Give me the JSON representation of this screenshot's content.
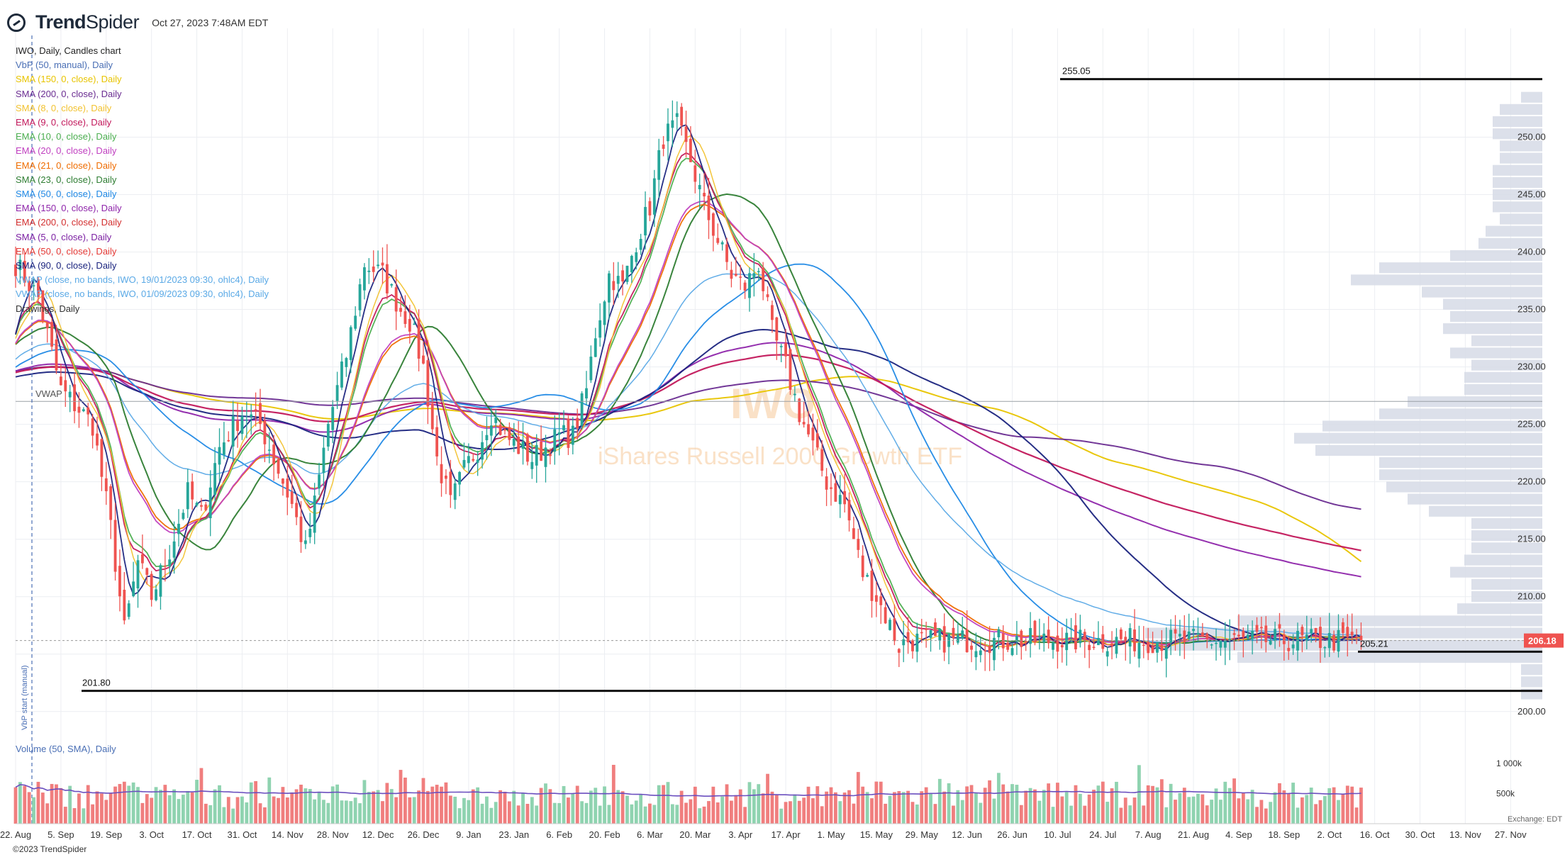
{
  "header": {
    "brand_bold": "Trend",
    "brand_rest": "Spider",
    "timestamp": "Oct 27, 2023 7:48AM EDT",
    "subtitle": "IWO, Daily, Candles chart"
  },
  "legend": [
    {
      "text": "VbP (50, manual), Daily",
      "color": "#4a6fb5"
    },
    {
      "text": "SMA (150, 0, close), Daily",
      "color": "#e8c400"
    },
    {
      "text": "SMA (200, 0, close), Daily",
      "color": "#6a2c91"
    },
    {
      "text": "SMA (8, 0, close), Daily",
      "color": "#f2c230"
    },
    {
      "text": "EMA (9, 0, close), Daily",
      "color": "#c2185b"
    },
    {
      "text": "EMA (10, 0, close), Daily",
      "color": "#4caf50"
    },
    {
      "text": "EMA (20, 0, close), Daily",
      "color": "#c040c0"
    },
    {
      "text": "EMA (21, 0, close), Daily",
      "color": "#ef6c00"
    },
    {
      "text": "SMA (23, 0, close), Daily",
      "color": "#2e7d32"
    },
    {
      "text": "SMA (50, 0, close), Daily",
      "color": "#1e88e5"
    },
    {
      "text": "EMA (150, 0, close), Daily",
      "color": "#8e24aa"
    },
    {
      "text": "EMA (200, 0, close), Daily",
      "color": "#d32f2f"
    },
    {
      "text": "SMA (5, 0, close), Daily",
      "color": "#7b1fa2"
    },
    {
      "text": "EMA (50, 0, close), Daily",
      "color": "#e53935"
    },
    {
      "text": "SMA (90, 0, close), Daily",
      "color": "#1a237e"
    },
    {
      "text": "VWAP (close, no bands, IWO, 19/01/2023 09:30, ohlc4), Daily",
      "color": "#5aa9e6"
    },
    {
      "text": "VWAP (close, no bands, IWO, 01/09/2023 09:30, ohlc4), Daily",
      "color": "#5aa9e6"
    },
    {
      "text": "Drawings, Daily",
      "color": "#333333"
    }
  ],
  "watermark": {
    "line1": "IWO",
    "line2": "iShares Russell 2000 Growth ETF"
  },
  "annotations": {
    "high_label": "255.05",
    "low_label": "201.80",
    "recent_low_label": "205.21",
    "last_price": "206.18",
    "vwap_label": "VWAP",
    "vbp_start_label": "VbP start (manual)",
    "exchange": "Exchange: EDT"
  },
  "volume": {
    "title": "Volume (50, SMA), Daily"
  },
  "copyright": "©2023 TrendSpider",
  "colors": {
    "up": "#26a69a",
    "down": "#ef5350",
    "vol_up": "#8fd3b0",
    "vol_down": "#f07e7e",
    "volume_profile": "#d6dbe6",
    "grid": "#eceef2"
  },
  "chart_data": {
    "type": "candlestick",
    "symbol": "IWO",
    "ylim": [
      199,
      257
    ],
    "y_ticks": [
      200,
      205,
      210,
      215,
      220,
      225,
      230,
      235,
      240,
      245,
      250
    ],
    "y_tick_labels": [
      "200.00",
      "205.00",
      "210.00",
      "215.00",
      "220.00",
      "225.00",
      "230.00",
      "235.00",
      "240.00",
      "245.00",
      "250.00"
    ],
    "x_labels": [
      "22. Aug",
      "5. Sep",
      "19. Sep",
      "3. Oct",
      "17. Oct",
      "31. Oct",
      "14. Nov",
      "28. Nov",
      "12. Dec",
      "26. Dec",
      "9. Jan",
      "23. Jan",
      "6. Feb",
      "20. Feb",
      "6. Mar",
      "20. Mar",
      "3. Apr",
      "17. Apr",
      "1. May",
      "15. May",
      "29. May",
      "12. Jun",
      "26. Jun",
      "10. Jul",
      "24. Jul",
      "7. Aug",
      "21. Aug",
      "4. Sep",
      "18. Sep",
      "2. Oct",
      "16. Oct",
      "30. Oct",
      "13. Nov",
      "27. Nov"
    ],
    "x_label_days": [
      0,
      10,
      20,
      30,
      40,
      50,
      60,
      70,
      80,
      90,
      100,
      110,
      120,
      130,
      140,
      150,
      160,
      170,
      180,
      190,
      200,
      210,
      220,
      230,
      240,
      250,
      260,
      270,
      280,
      290,
      300,
      310,
      320,
      330
    ],
    "total_days": 337,
    "last_day": 297,
    "close_anchors": [
      [
        0,
        239
      ],
      [
        5,
        236
      ],
      [
        10,
        228
      ],
      [
        17,
        225
      ],
      [
        21,
        216
      ],
      [
        24,
        207
      ],
      [
        27,
        213
      ],
      [
        30,
        210
      ],
      [
        34,
        214
      ],
      [
        38,
        219
      ],
      [
        41,
        217
      ],
      [
        45,
        223
      ],
      [
        50,
        226
      ],
      [
        54,
        225
      ],
      [
        58,
        221
      ],
      [
        61,
        218
      ],
      [
        64,
        214
      ],
      [
        66,
        218
      ],
      [
        69,
        225
      ],
      [
        73,
        231
      ],
      [
        77,
        239
      ],
      [
        81,
        238
      ],
      [
        85,
        235
      ],
      [
        87,
        234
      ],
      [
        90,
        230
      ],
      [
        93,
        222
      ],
      [
        96,
        218
      ],
      [
        99,
        221
      ],
      [
        102,
        223
      ],
      [
        105,
        226
      ],
      [
        108,
        224
      ],
      [
        111,
        223
      ],
      [
        114,
        222
      ],
      [
        117,
        223
      ],
      [
        120,
        224
      ],
      [
        123,
        224
      ],
      [
        126,
        228
      ],
      [
        128,
        233
      ],
      [
        131,
        238
      ],
      [
        134,
        237
      ],
      [
        137,
        241
      ],
      [
        140,
        244
      ],
      [
        143,
        250
      ],
      [
        146,
        251
      ],
      [
        149,
        248
      ],
      [
        152,
        244
      ],
      [
        155,
        241
      ],
      [
        158,
        238
      ],
      [
        161,
        237
      ],
      [
        164,
        239
      ],
      [
        167,
        233
      ],
      [
        170,
        230
      ],
      [
        173,
        226
      ],
      [
        176,
        223
      ],
      [
        179,
        220
      ],
      [
        183,
        218
      ],
      [
        187,
        212
      ],
      [
        190,
        210
      ],
      [
        193,
        207.5
      ],
      [
        195,
        205.7
      ],
      [
        197,
        206.18
      ]
    ],
    "volume_ylim": [
      0,
      1200000
    ],
    "volume_ticks": [
      "500k",
      "1 000k"
    ],
    "volume_profile_range": [
      201,
      254
    ]
  }
}
